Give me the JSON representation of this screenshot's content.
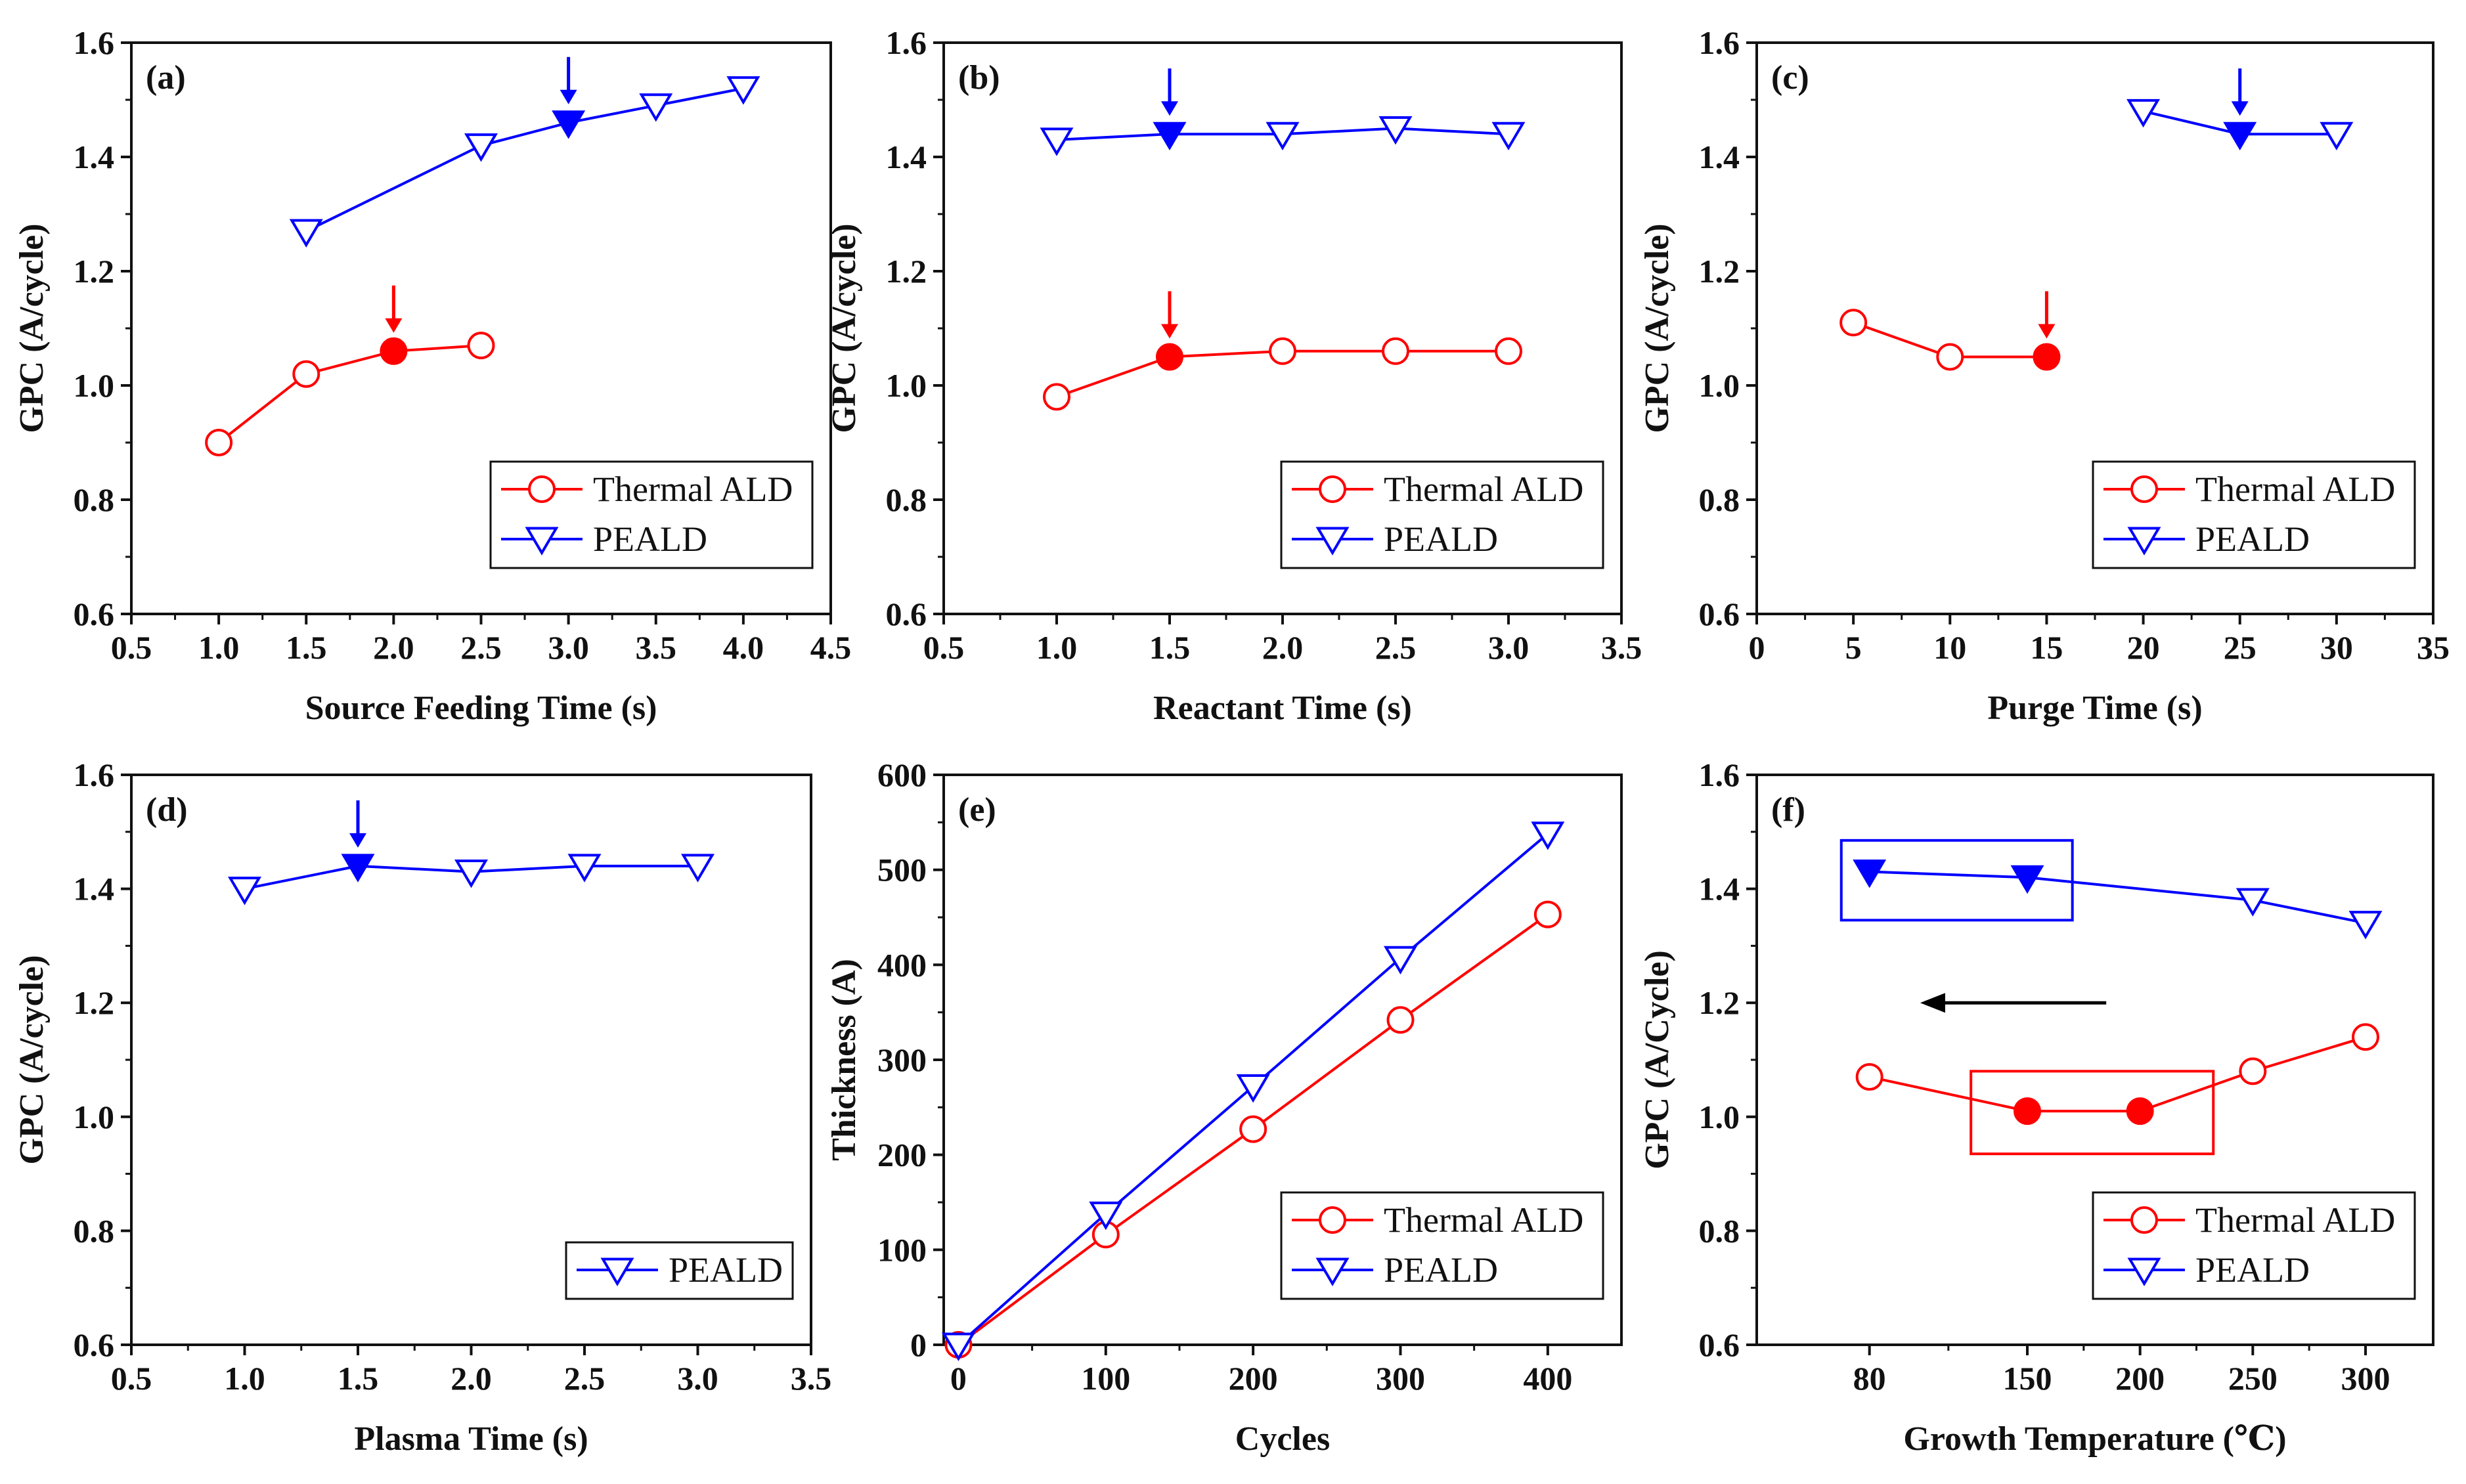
{
  "colors": {
    "thermal": "#ff0000",
    "peald": "#0000ff",
    "axis": "#111111",
    "arrow": "#000000"
  },
  "chart_data": [
    {
      "panel": "(a)",
      "type": "line",
      "xlabel": "Source Feeding Time (s)",
      "ylabel": "GPC (A/cycle)",
      "xlim": [
        0.5,
        4.5
      ],
      "ylim": [
        0.6,
        1.6
      ],
      "xticks": [
        0.5,
        1.0,
        1.5,
        2.0,
        2.5,
        3.0,
        3.5,
        4.0,
        4.5
      ],
      "xtick_labels": [
        "0.5",
        "1.0",
        "1.5",
        "2.0",
        "2.5",
        "3.0",
        "3.5",
        "4.0",
        "4.5"
      ],
      "yticks": [
        0.6,
        0.8,
        1.0,
        1.2,
        1.4,
        1.6
      ],
      "ytick_labels": [
        "0.6",
        "0.8",
        "1.0",
        "1.2",
        "1.4",
        "1.6"
      ],
      "legend": "bottom-right",
      "series": [
        {
          "name": "Thermal ALD",
          "marker": "circle",
          "color": "#ff0000",
          "x": [
            1.0,
            1.5,
            2.0,
            2.5
          ],
          "y": [
            0.9,
            1.02,
            1.06,
            1.07
          ],
          "filled_index": [
            2
          ],
          "arrow_index": [
            2
          ]
        },
        {
          "name": "PEALD",
          "marker": "triangle",
          "color": "#0000ff",
          "x": [
            1.5,
            2.5,
            3.0,
            3.5,
            4.0
          ],
          "y": [
            1.27,
            1.42,
            1.46,
            1.49,
            1.52
          ],
          "filled_index": [
            2
          ],
          "arrow_index": [
            2
          ]
        }
      ]
    },
    {
      "panel": "(b)",
      "type": "line",
      "xlabel": "Reactant Time (s)",
      "ylabel": "GPC (A/cycle)",
      "xlim": [
        0.5,
        3.5
      ],
      "ylim": [
        0.6,
        1.6
      ],
      "xticks": [
        0.5,
        1.0,
        1.5,
        2.0,
        2.5,
        3.0,
        3.5
      ],
      "xtick_labels": [
        "0.5",
        "1.0",
        "1.5",
        "2.0",
        "2.5",
        "3.0",
        "3.5"
      ],
      "yticks": [
        0.6,
        0.8,
        1.0,
        1.2,
        1.4,
        1.6
      ],
      "ytick_labels": [
        "0.6",
        "0.8",
        "1.0",
        "1.2",
        "1.4",
        "1.6"
      ],
      "legend": "bottom-right",
      "series": [
        {
          "name": "Thermal ALD",
          "marker": "circle",
          "color": "#ff0000",
          "x": [
            1.0,
            1.5,
            2.0,
            2.5,
            3.0
          ],
          "y": [
            0.98,
            1.05,
            1.06,
            1.06,
            1.06
          ],
          "filled_index": [
            1
          ],
          "arrow_index": [
            1
          ]
        },
        {
          "name": "PEALD",
          "marker": "triangle",
          "color": "#0000ff",
          "x": [
            1.0,
            1.5,
            2.0,
            2.5,
            3.0
          ],
          "y": [
            1.43,
            1.44,
            1.44,
            1.45,
            1.44
          ],
          "filled_index": [
            1
          ],
          "arrow_index": [
            1
          ]
        }
      ]
    },
    {
      "panel": "(c)",
      "type": "line",
      "xlabel": "Purge Time (s)",
      "ylabel": "GPC (A/cycle)",
      "xlim": [
        0,
        35
      ],
      "ylim": [
        0.6,
        1.6
      ],
      "xticks": [
        0,
        5,
        10,
        15,
        20,
        25,
        30,
        35
      ],
      "xtick_labels": [
        "0",
        "5",
        "10",
        "15",
        "20",
        "25",
        "30",
        "35"
      ],
      "yticks": [
        0.6,
        0.8,
        1.0,
        1.2,
        1.4,
        1.6
      ],
      "ytick_labels": [
        "0.6",
        "0.8",
        "1.0",
        "1.2",
        "1.4",
        "1.6"
      ],
      "legend": "bottom-right",
      "series": [
        {
          "name": "Thermal ALD",
          "marker": "circle",
          "color": "#ff0000",
          "x": [
            5,
            10,
            15
          ],
          "y": [
            1.11,
            1.05,
            1.05
          ],
          "filled_index": [
            2
          ],
          "arrow_index": [
            2
          ]
        },
        {
          "name": "PEALD",
          "marker": "triangle",
          "color": "#0000ff",
          "x": [
            20,
            25,
            30
          ],
          "y": [
            1.48,
            1.44,
            1.44
          ],
          "filled_index": [
            1
          ],
          "arrow_index": [
            1
          ]
        }
      ]
    },
    {
      "panel": "(d)",
      "type": "line",
      "xlabel": "Plasma Time (s)",
      "ylabel": "GPC (A/cycle)",
      "xlim": [
        0.5,
        3.5
      ],
      "ylim": [
        0.6,
        1.6
      ],
      "xticks": [
        0.5,
        1.0,
        1.5,
        2.0,
        2.5,
        3.0,
        3.5
      ],
      "xtick_labels": [
        "0.5",
        "1.0",
        "1.5",
        "2.0",
        "2.5",
        "3.0",
        "3.5"
      ],
      "yticks": [
        0.6,
        0.8,
        1.0,
        1.2,
        1.4,
        1.6
      ],
      "ytick_labels": [
        "0.6",
        "0.8",
        "1.0",
        "1.2",
        "1.4",
        "1.6"
      ],
      "legend": "bottom-right",
      "series": [
        {
          "name": "PEALD",
          "marker": "triangle",
          "color": "#0000ff",
          "x": [
            1.0,
            1.5,
            2.0,
            2.5,
            3.0
          ],
          "y": [
            1.4,
            1.44,
            1.43,
            1.44,
            1.44
          ],
          "filled_index": [
            1
          ],
          "arrow_index": [
            1
          ]
        }
      ]
    },
    {
      "panel": "(e)",
      "type": "line",
      "xlabel": "Cycles",
      "ylabel": "Thickness (A)",
      "xlim": [
        -10,
        450
      ],
      "ylim": [
        0,
        600
      ],
      "xticks": [
        0,
        100,
        200,
        300,
        400
      ],
      "xtick_labels": [
        "0",
        "100",
        "200",
        "300",
        "400"
      ],
      "yticks": [
        0,
        100,
        200,
        300,
        400,
        500,
        600
      ],
      "ytick_labels": [
        "0",
        "100",
        "200",
        "300",
        "400",
        "500",
        "600"
      ],
      "legend": "bottom-right",
      "series": [
        {
          "name": "Thermal ALD",
          "marker": "circle",
          "color": "#ff0000",
          "x": [
            0,
            100,
            200,
            300,
            400
          ],
          "y": [
            0,
            116,
            227,
            342,
            453
          ],
          "filled_index": [],
          "arrow_index": []
        },
        {
          "name": "PEALD",
          "marker": "triangle",
          "color": "#0000ff",
          "x": [
            0,
            100,
            200,
            300,
            400
          ],
          "y": [
            0,
            138,
            272,
            407,
            538
          ],
          "filled_index": [],
          "arrow_index": []
        }
      ]
    },
    {
      "panel": "(f)",
      "type": "line",
      "xlabel": "Growth Temperature (℃)",
      "ylabel": "GPC (A/Cycle)",
      "xlim": [
        0,
        6
      ],
      "ylim": [
        0.6,
        1.6
      ],
      "xticks": [
        1,
        2.4,
        3.4,
        4.4,
        5.4
      ],
      "xtick_labels": [
        "80",
        "150",
        "200",
        "250",
        "300"
      ],
      "yticks": [
        0.6,
        0.8,
        1.0,
        1.2,
        1.4,
        1.6
      ],
      "ytick_labels": [
        "0.6",
        "0.8",
        "1.0",
        "1.2",
        "1.4",
        "1.6"
      ],
      "legend": "bottom-right",
      "series": [
        {
          "name": "Thermal ALD",
          "marker": "circle",
          "color": "#ff0000",
          "x": [
            1,
            2.4,
            3.4,
            4.4,
            5.4
          ],
          "y": [
            1.07,
            1.01,
            1.01,
            1.08,
            1.14
          ],
          "filled_index": [
            1,
            2
          ],
          "arrow_index": []
        },
        {
          "name": "PEALD",
          "marker": "triangle",
          "color": "#0000ff",
          "x": [
            1,
            2.4,
            4.4,
            5.4
          ],
          "y": [
            1.43,
            1.42,
            1.38,
            1.34
          ],
          "filled_index": [
            0,
            1
          ],
          "arrow_index": []
        }
      ],
      "highlight_boxes": [
        {
          "color": "#0000ff",
          "x": [
            0.75,
            2.8
          ],
          "y": [
            1.345,
            1.485
          ]
        },
        {
          "color": "#ff0000",
          "x": [
            1.9,
            4.05
          ],
          "y": [
            0.935,
            1.08
          ]
        }
      ],
      "direction_arrow": {
        "from": [
          3.1,
          1.2
        ],
        "to": [
          1.45,
          1.2
        ],
        "color": "#000000"
      }
    }
  ]
}
